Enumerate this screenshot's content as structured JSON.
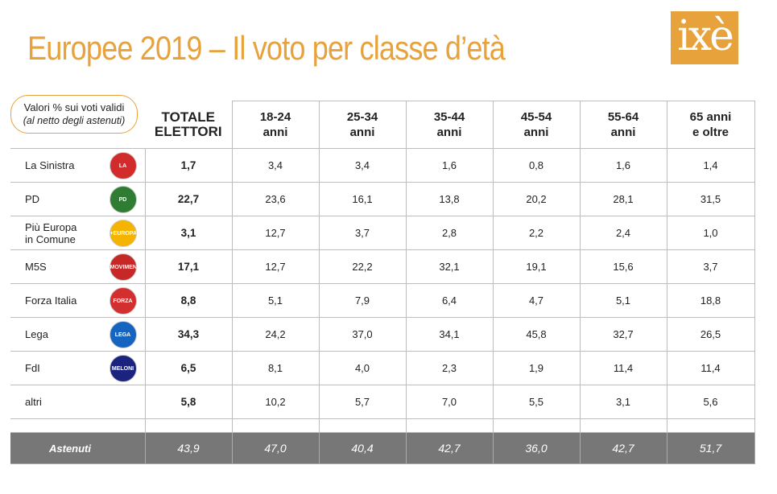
{
  "title": "Europee 2019 – Il voto per classe d’età",
  "brand": "ixè",
  "note_line1": "Valori % sui voti validi",
  "note_line2": "(al netto degli astenuti)",
  "colors": {
    "accent": "#e8a23c",
    "abstention_row": "#777777"
  },
  "chart_data": {
    "type": "table",
    "columns": [
      "TOTALE ELETTORI",
      "18-24 anni",
      "25-34 anni",
      "35-44 anni",
      "45-54 anni",
      "55-64 anni",
      "65 anni e oltre"
    ],
    "rows": [
      {
        "party": "La Sinistra",
        "logo": "LA SINISTRA",
        "logo_color": "#d22b2b",
        "values": [
          "1,7",
          "3,4",
          "3,4",
          "1,6",
          "0,8",
          "1,6",
          "1,4"
        ]
      },
      {
        "party": "PD",
        "logo": "PD",
        "logo_color": "#2e7d32",
        "values": [
          "22,7",
          "23,6",
          "16,1",
          "13,8",
          "20,2",
          "28,1",
          "31,5"
        ]
      },
      {
        "party": "Più Europa\nin Comune",
        "logo": "+EUROPA",
        "logo_color": "#f5b400",
        "values": [
          "3,1",
          "12,7",
          "3,7",
          "2,8",
          "2,2",
          "2,4",
          "1,0"
        ]
      },
      {
        "party": "M5S",
        "logo": "MOVIMENTO",
        "logo_color": "#c62828",
        "values": [
          "17,1",
          "12,7",
          "22,2",
          "32,1",
          "19,1",
          "15,6",
          "3,7"
        ]
      },
      {
        "party": "Forza Italia",
        "logo": "FORZA ITALIA",
        "logo_color": "#d32f2f",
        "values": [
          "8,8",
          "5,1",
          "7,9",
          "6,4",
          "4,7",
          "5,1",
          "18,8"
        ]
      },
      {
        "party": "Lega",
        "logo": "LEGA SALVINI",
        "logo_color": "#1565c0",
        "values": [
          "34,3",
          "24,2",
          "37,0",
          "34,1",
          "45,8",
          "32,7",
          "26,5"
        ]
      },
      {
        "party": "FdI",
        "logo": "MELONI",
        "logo_color": "#1a237e",
        "values": [
          "6,5",
          "8,1",
          "4,0",
          "2,3",
          "1,9",
          "11,4",
          "11,4"
        ]
      },
      {
        "party": "altri",
        "logo": "",
        "logo_color": "",
        "values": [
          "5,8",
          "10,2",
          "5,7",
          "7,0",
          "5,5",
          "3,1",
          "5,6"
        ]
      }
    ],
    "abstention": {
      "label": "Astenuti",
      "values": [
        "43,9",
        "47,0",
        "40,4",
        "42,7",
        "36,0",
        "42,7",
        "51,7"
      ]
    }
  }
}
